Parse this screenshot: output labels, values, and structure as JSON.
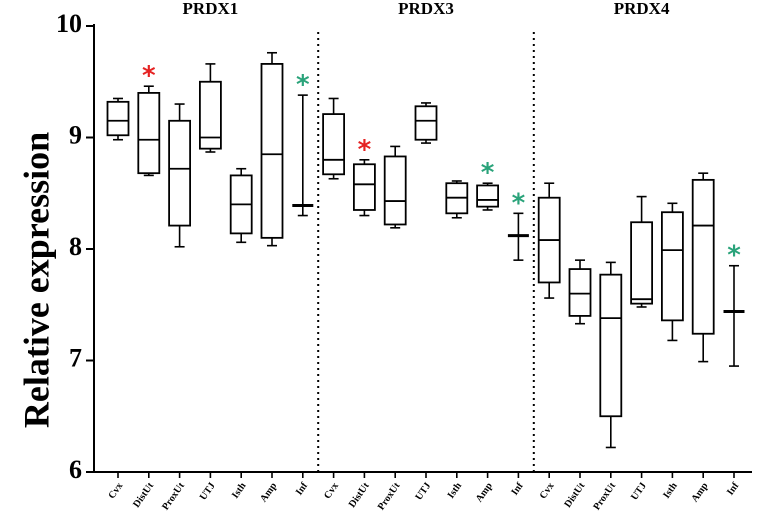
{
  "chart_data": {
    "type": "box",
    "ylabel": "Relative expression",
    "ylim": [
      6,
      10
    ],
    "yticks": [
      6,
      7,
      8,
      9,
      10
    ],
    "groups": [
      {
        "title": "PRDX1",
        "boxes": [
          {
            "label": "Cvx",
            "min": 8.98,
            "q1": 9.02,
            "median": 9.15,
            "q3": 9.32,
            "max": 9.35,
            "star": null
          },
          {
            "label": "DistUt",
            "min": 8.66,
            "q1": 8.68,
            "median": 8.98,
            "q3": 9.4,
            "max": 9.46,
            "star": "#e52222"
          },
          {
            "label": "ProxUt",
            "min": 8.02,
            "q1": 8.21,
            "median": 8.72,
            "q3": 9.15,
            "max": 9.3,
            "star": null
          },
          {
            "label": "UTJ",
            "min": 8.87,
            "q1": 8.9,
            "median": 9.0,
            "q3": 9.5,
            "max": 9.66,
            "star": null
          },
          {
            "label": "Isth",
            "min": 8.06,
            "q1": 8.14,
            "median": 8.4,
            "q3": 8.66,
            "max": 8.72,
            "star": null
          },
          {
            "label": "Amp",
            "min": 8.03,
            "q1": 8.1,
            "median": 8.85,
            "q3": 9.66,
            "max": 9.76,
            "star": null
          },
          {
            "label": "Inf",
            "min": 8.3,
            "q1": 8.39,
            "median": 8.39,
            "q3": 8.39,
            "max": 9.38,
            "star": "#2aa37a"
          }
        ]
      },
      {
        "title": "PRDX3",
        "boxes": [
          {
            "label": "Cvx",
            "min": 8.63,
            "q1": 8.67,
            "median": 8.8,
            "q3": 9.21,
            "max": 9.35,
            "star": null
          },
          {
            "label": "DistUt",
            "min": 8.3,
            "q1": 8.35,
            "median": 8.58,
            "q3": 8.76,
            "max": 8.8,
            "star": "#e52222"
          },
          {
            "label": "ProxUt",
            "min": 8.19,
            "q1": 8.22,
            "median": 8.43,
            "q3": 8.83,
            "max": 8.92,
            "star": null
          },
          {
            "label": "UTJ",
            "min": 8.95,
            "q1": 8.98,
            "median": 9.15,
            "q3": 9.28,
            "max": 9.31,
            "star": null
          },
          {
            "label": "Isth",
            "min": 8.28,
            "q1": 8.32,
            "median": 8.46,
            "q3": 8.59,
            "max": 8.61,
            "star": null
          },
          {
            "label": "Amp",
            "min": 8.35,
            "q1": 8.38,
            "median": 8.44,
            "q3": 8.57,
            "max": 8.59,
            "star": "#2aa37a"
          },
          {
            "label": "Inf",
            "min": 7.9,
            "q1": 8.12,
            "median": 8.12,
            "q3": 8.12,
            "max": 8.32,
            "star": "#2aa37a"
          }
        ]
      },
      {
        "title": "PRDX4",
        "boxes": [
          {
            "label": "Cvx",
            "min": 7.56,
            "q1": 7.7,
            "median": 8.08,
            "q3": 8.46,
            "max": 8.59,
            "star": null
          },
          {
            "label": "DistUt",
            "min": 7.33,
            "q1": 7.4,
            "median": 7.6,
            "q3": 7.82,
            "max": 7.9,
            "star": null
          },
          {
            "label": "ProxUt",
            "min": 6.22,
            "q1": 6.5,
            "median": 7.38,
            "q3": 7.77,
            "max": 7.88,
            "star": null
          },
          {
            "label": "UTJ",
            "min": 7.48,
            "q1": 7.51,
            "median": 7.55,
            "q3": 8.24,
            "max": 8.47,
            "star": null
          },
          {
            "label": "Isth",
            "min": 7.18,
            "q1": 7.36,
            "median": 7.99,
            "q3": 8.33,
            "max": 8.41,
            "star": null
          },
          {
            "label": "Amp",
            "min": 6.99,
            "q1": 7.24,
            "median": 8.21,
            "q3": 8.62,
            "max": 8.68,
            "star": null
          },
          {
            "label": "Inf",
            "min": 6.95,
            "q1": 7.44,
            "median": 7.44,
            "q3": 7.44,
            "max": 7.85,
            "star": "#2aa37a"
          }
        ]
      }
    ]
  },
  "star_symbol": "*"
}
